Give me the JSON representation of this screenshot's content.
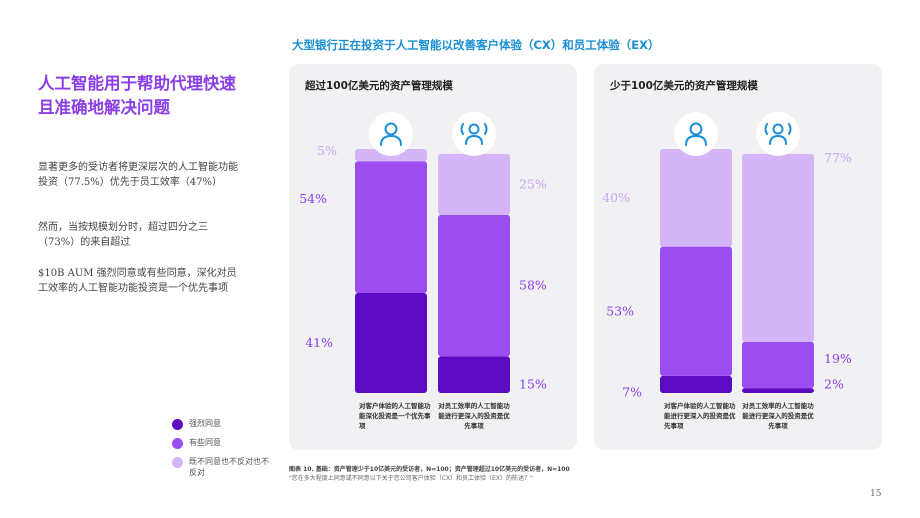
{
  "header": {
    "top_title": "大型银行正在投资于人工智能以改善客户体验（CX）和员工体验（EX）"
  },
  "sidebar": {
    "title": "人工智能用于帮助代理快速且准确地解决问题",
    "paragraphs": [
      "显著更多的受访者将更深层次的人工智能功能投资（77.5%）优先于员工效率（47%）",
      "然而，当按规模划分时，超过四分之三（73%）的来自超过",
      "$10B AUM 强烈同意或有些同意，深化对员工效率的人工智能功能投资是一个优先事项"
    ]
  },
  "legend": [
    {
      "label": "强烈同意",
      "color": "#5b0cc2"
    },
    {
      "label": "有些同意",
      "color": "#9b4df0"
    },
    {
      "label": "既不同意也不反对也不反对",
      "color": "#d4b5f7"
    }
  ],
  "colors": {
    "strong": "#5b0cc2",
    "some": "#9b4df0",
    "neutral": "#d4b5f7",
    "label": "#8a3ee6",
    "icon": "#1b8fd6"
  },
  "chart_data": [
    {
      "type": "bar",
      "stacked": true,
      "title": "超过100亿美元的资产管理规模",
      "categories": [
        "对客户体验的人工智能功能深化投资是一个优先事项",
        "对员工效率的人工智能功能进行更深入的投资是优先事项"
      ],
      "series": [
        {
          "name": "强烈同意",
          "values": [
            41,
            15
          ]
        },
        {
          "name": "有些同意",
          "values": [
            54,
            58
          ]
        },
        {
          "name": "既不同意也不反对也不反对",
          "values": [
            5,
            25
          ]
        }
      ],
      "data_labels": [
        [
          "41%",
          "54%",
          "5%"
        ],
        [
          "15%",
          "58%",
          "25%"
        ]
      ],
      "icons": [
        "person-icon",
        "team-icon"
      ]
    },
    {
      "type": "bar",
      "stacked": true,
      "title": "少于100亿美元的资产管理规模",
      "categories": [
        "对客户体验的人工智能功能进行更深入的投资是优先事项",
        "对员工效率的人工智能功能进行更深入的投资是优先事项"
      ],
      "series": [
        {
          "name": "强烈同意",
          "values": [
            7,
            2
          ]
        },
        {
          "name": "有些同意",
          "values": [
            53,
            19
          ]
        },
        {
          "name": "既不同意也不反对也不反对",
          "values": [
            40,
            77
          ]
        }
      ],
      "data_labels": [
        [
          "7%",
          "53%",
          "40%"
        ],
        [
          "2%",
          "19%",
          "77%"
        ]
      ],
      "icons": [
        "person-icon",
        "team-icon"
      ]
    }
  ],
  "footnote": {
    "head": "图表 10. 基础：资产管理少于10亿美元的受访者，N=100；资产管理超过10亿美元的受访者，N=100",
    "body": "\"您在多大程度上同意或不同意以下关于您公司客户体验（CX）和员工体验（EX）的陈述？\""
  },
  "page_number": "15"
}
